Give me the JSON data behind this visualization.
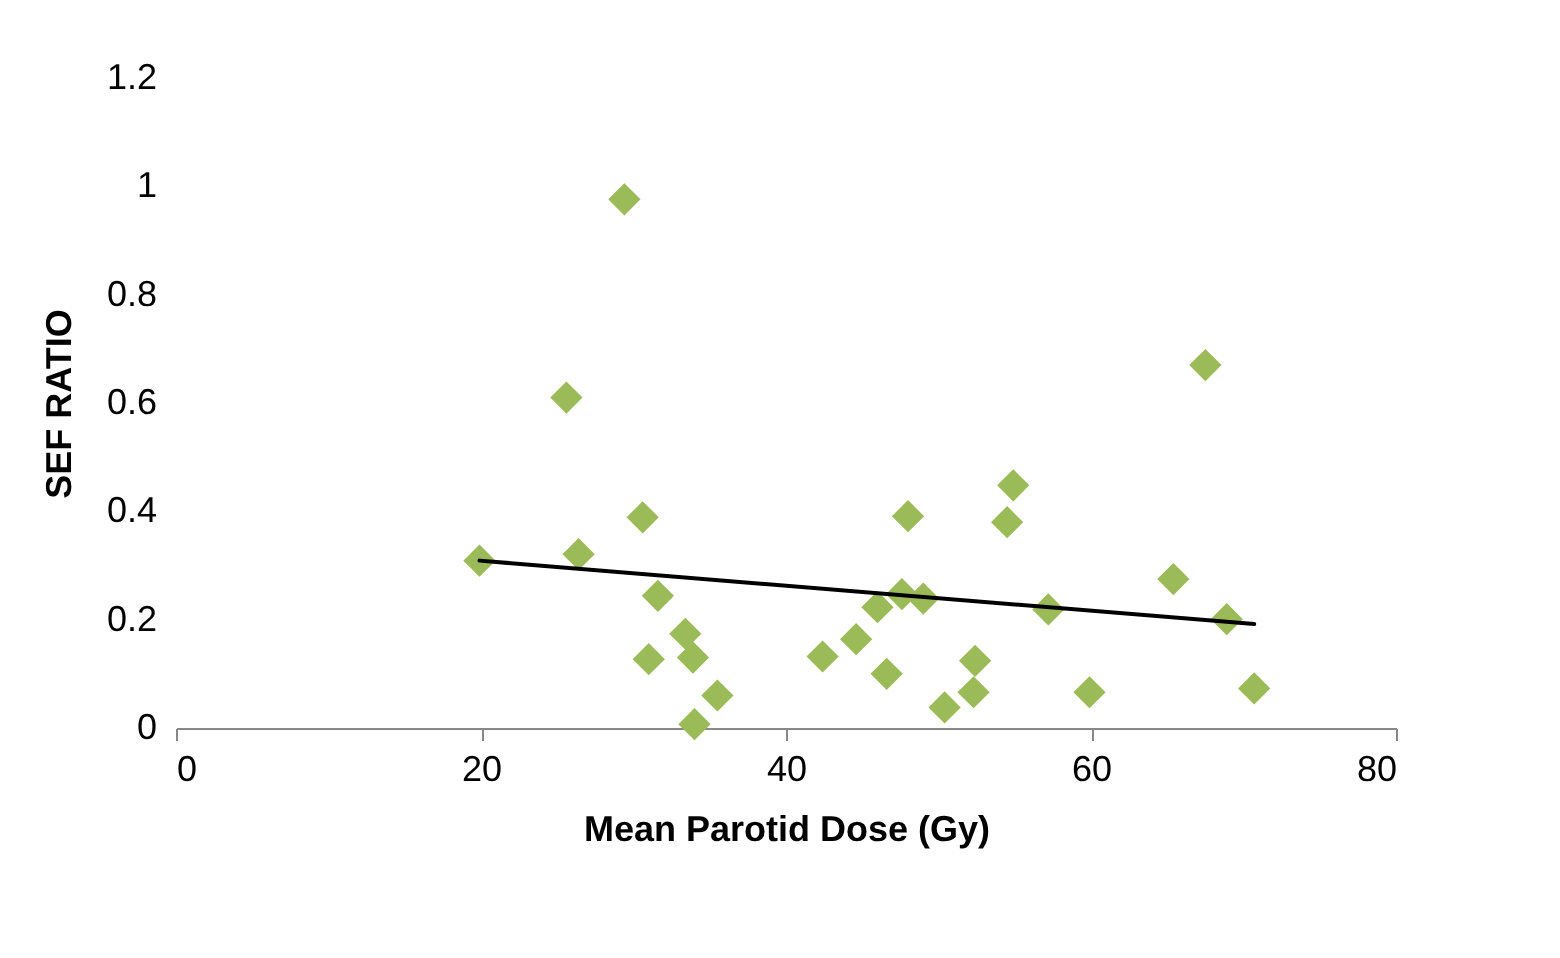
{
  "chart_data": {
    "type": "scatter",
    "xlabel": "Mean Parotid Dose (Gy)",
    "ylabel": "SEF RATIO",
    "xlim": [
      0,
      80
    ],
    "xticks": [
      0,
      20,
      40,
      60,
      80
    ],
    "ylim": [
      0,
      1.2
    ],
    "yticks": [
      0,
      0.2,
      0.4,
      0.6,
      0.8,
      1,
      1.2
    ],
    "grid": false,
    "marker": "diamond",
    "series": [
      {
        "color": "#9bbb59",
        "x": [
          29.4,
          25.6,
          19.9,
          30.6,
          26.4,
          31.6,
          33.4,
          31.0,
          33.9,
          35.5,
          34.0,
          42.4,
          44.6,
          46.6,
          46.0,
          47.6,
          49.0,
          48.0,
          50.4,
          52.4,
          52.3,
          54.9,
          54.5,
          57.2,
          59.9,
          67.5,
          65.4,
          68.9,
          70.7
        ],
        "values": [
          0.976,
          0.61,
          0.309,
          0.389,
          0.321,
          0.244,
          0.174,
          0.127,
          0.13,
          0.06,
          0.007,
          0.132,
          0.164,
          0.1,
          0.223,
          0.247,
          0.239,
          0.391,
          0.038,
          0.124,
          0.066,
          0.448,
          0.38,
          0.219,
          0.066,
          0.67,
          0.275,
          0.201,
          0.073
        ]
      },
      {
        "type": "line",
        "color": "#000000",
        "line_style": "solid",
        "marker": "none",
        "x": [
          19.9,
          70.7
        ],
        "values": [
          0.309,
          0.192
        ]
      }
    ]
  }
}
